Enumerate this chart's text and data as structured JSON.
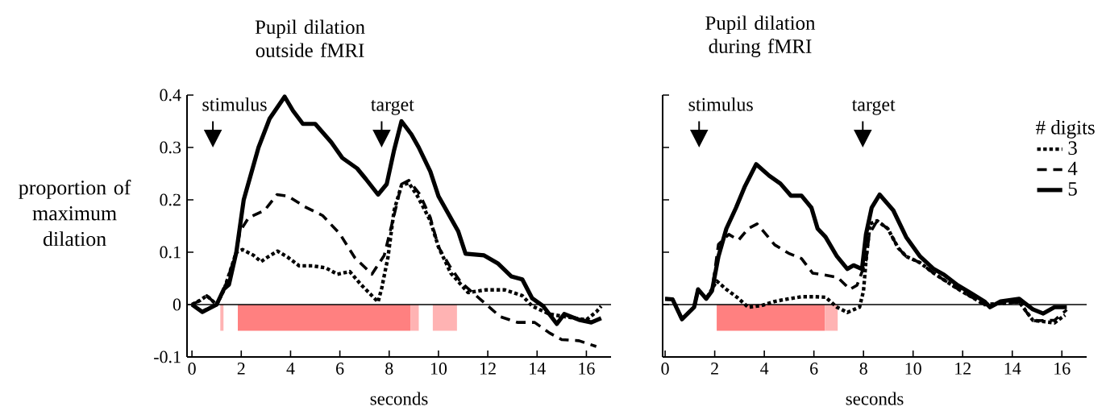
{
  "chart_data": [
    {
      "type": "line",
      "title": "Pupil dilation outside fMRI",
      "xlabel": "seconds",
      "ylabel": "proportion of maximum dilation",
      "xlim": [
        -0.2,
        17
      ],
      "ylim": [
        -0.1,
        0.4
      ],
      "xticks": [
        0,
        2,
        4,
        6,
        8,
        10,
        12,
        14,
        16
      ],
      "yticks": [
        -0.1,
        0,
        0.1,
        0.2,
        0.3,
        0.4
      ],
      "ref_lines": [
        {
          "axis": "y",
          "value": 0,
          "color": "#000000"
        }
      ],
      "bands": [
        {
          "axis": "x",
          "from": 1.15,
          "to": 1.28,
          "color": "#ffb3b3"
        },
        {
          "axis": "x",
          "from": 1.86,
          "to": 8.86,
          "color": "#ff8080"
        },
        {
          "axis": "x",
          "from": 8.86,
          "to": 9.2,
          "color": "#ffb3b3"
        },
        {
          "axis": "x",
          "from": 9.77,
          "to": 10.75,
          "color": "#ffb3b3"
        }
      ],
      "annotations": [
        "stimulus",
        "target"
      ],
      "series": [
        {
          "color": "#000000",
          "line_style": "dotted",
          "x": [
            0,
            0.33,
            0.6,
            1.0,
            1.3,
            1.8,
            2.05,
            2.5,
            2.8,
            3.05,
            3.47,
            3.9,
            4.35,
            4.9,
            5.43,
            5.9,
            6.4,
            6.86,
            7.3,
            7.55,
            7.7,
            7.95,
            8.2,
            8.5,
            8.8,
            9.15,
            9.67,
            10.0,
            10.5,
            11.2,
            11.9,
            12.7,
            13.4,
            13.8,
            14.5,
            15.1,
            16.0,
            16.4,
            16.6
          ],
          "values": [
            0,
            0.008,
            0.017,
            0,
            0.028,
            0.1,
            0.105,
            0.094,
            0.082,
            0.09,
            0.102,
            0.09,
            0.074,
            0.074,
            0.07,
            0.058,
            0.063,
            0.038,
            0.017,
            0.005,
            0.032,
            0.09,
            0.18,
            0.228,
            0.232,
            0.207,
            0.16,
            0.11,
            0.06,
            0.023,
            0.028,
            0.028,
            0.017,
            -0.003,
            -0.018,
            -0.023,
            -0.029,
            -0.014,
            -0.003
          ]
        },
        {
          "color": "#000000",
          "line_style": "dashed",
          "x": [
            0,
            0.33,
            0.6,
            1.0,
            1.3,
            1.8,
            1.95,
            2.3,
            2.95,
            3.45,
            3.9,
            4.57,
            5.3,
            6.0,
            6.6,
            7.3,
            7.8,
            8.3,
            8.5,
            8.8,
            9.25,
            9.67,
            10.0,
            10.45,
            10.9,
            11.75,
            12.5,
            13.2,
            13.9,
            14.5,
            15.0,
            15.7,
            16.4
          ],
          "values": [
            0,
            0.008,
            0.017,
            0,
            0.028,
            0.1,
            0.14,
            0.166,
            0.18,
            0.21,
            0.207,
            0.187,
            0.17,
            0.135,
            0.09,
            0.058,
            0.094,
            0.19,
            0.23,
            0.237,
            0.21,
            0.166,
            0.11,
            0.074,
            0.043,
            0.008,
            -0.023,
            -0.034,
            -0.034,
            -0.054,
            -0.067,
            -0.069,
            -0.08
          ]
        },
        {
          "color": "#000000",
          "line_style": "solid",
          "x": [
            0,
            0.42,
            1.0,
            1.3,
            1.5,
            1.8,
            2.1,
            2.4,
            2.7,
            3.15,
            3.76,
            4.1,
            4.5,
            5.0,
            5.65,
            6.1,
            6.7,
            7.05,
            7.55,
            7.9,
            8.2,
            8.5,
            8.9,
            9.2,
            9.67,
            10.0,
            10.8,
            11.1,
            11.85,
            12.4,
            12.95,
            13.4,
            13.8,
            14.25,
            14.8,
            15.1,
            15.7,
            16.2,
            16.6
          ],
          "values": [
            0,
            -0.014,
            0,
            0.03,
            0.038,
            0.1,
            0.2,
            0.25,
            0.3,
            0.355,
            0.397,
            0.37,
            0.345,
            0.345,
            0.31,
            0.28,
            0.26,
            0.24,
            0.21,
            0.23,
            0.295,
            0.35,
            0.325,
            0.3,
            0.254,
            0.207,
            0.14,
            0.097,
            0.094,
            0.079,
            0.054,
            0.048,
            0.012,
            -0.003,
            -0.037,
            -0.018,
            -0.029,
            -0.034,
            -0.026
          ]
        }
      ]
    },
    {
      "type": "line",
      "title": "Pupil dilation during fMRI",
      "xlabel": "seconds",
      "legend_title": "# digits",
      "legend": "top right",
      "tick_labels": "x",
      "xlim": [
        -0.1,
        17
      ],
      "ylim": [
        -0.1,
        0.4
      ],
      "xticks": [
        0,
        2,
        4,
        6,
        8,
        10,
        12,
        14,
        16
      ],
      "yticks": [
        -0.1,
        0,
        0.1,
        0.2,
        0.3,
        0.4
      ],
      "ref_lines": [
        {
          "axis": "y",
          "value": 0,
          "color": "#000000"
        }
      ],
      "bands": [
        {
          "axis": "x",
          "from": 2.08,
          "to": 6.44,
          "color": "#ff8080"
        },
        {
          "axis": "x",
          "from": 6.44,
          "to": 6.96,
          "color": "#ffb3b3"
        }
      ],
      "annotations": [
        "stimulus",
        "target"
      ],
      "series": [
        {
          "name": "3",
          "color": "#000000",
          "line_style": "dotted",
          "x": [
            0,
            0.3,
            0.68,
            1.17,
            1.33,
            1.66,
            2.08,
            2.47,
            2.9,
            3.35,
            3.87,
            4.42,
            4.98,
            5.5,
            6.05,
            6.47,
            6.93,
            7.35,
            7.84,
            8.0,
            8.1,
            8.26,
            8.55,
            8.98,
            9.4,
            9.72,
            10.28,
            10.83,
            11.8,
            12.88,
            14.28,
            14.83,
            15.7,
            16.13
          ],
          "values": [
            0.011,
            0.01,
            -0.028,
            -0.005,
            0.029,
            0.011,
            0.045,
            0.029,
            0.014,
            -0.005,
            -0.002,
            0.006,
            0.011,
            0.015,
            0.015,
            0.014,
            -0.005,
            -0.015,
            -0.005,
            0.026,
            0.083,
            0.154,
            0.16,
            0.145,
            0.108,
            0.092,
            0.08,
            0.06,
            0.03,
            0,
            0.005,
            -0.03,
            -0.035,
            -0.02
          ]
        },
        {
          "name": "4",
          "color": "#000000",
          "line_style": "dashed",
          "x": [
            0,
            0.3,
            0.68,
            1.17,
            1.33,
            1.66,
            1.89,
            2.15,
            2.57,
            2.96,
            3.35,
            3.71,
            4.0,
            4.42,
            4.98,
            5.5,
            5.95,
            6.37,
            6.96,
            7.45,
            7.74,
            8.1,
            8.23,
            8.55,
            8.98,
            9.4,
            9.72,
            10.28,
            10.83,
            11.8,
            12.88,
            14.28,
            14.83,
            15.7,
            16.2
          ],
          "values": [
            0.011,
            0.01,
            -0.028,
            -0.005,
            0.029,
            0.011,
            0.026,
            0.115,
            0.134,
            0.123,
            0.145,
            0.154,
            0.138,
            0.114,
            0.098,
            0.088,
            0.06,
            0.057,
            0.052,
            0.029,
            0.037,
            0.083,
            0.134,
            0.16,
            0.145,
            0.108,
            0.092,
            0.08,
            0.06,
            0.03,
            0,
            0.005,
            -0.031,
            -0.03,
            -0.01
          ]
        },
        {
          "name": "5",
          "color": "#000000",
          "line_style": "solid",
          "x": [
            0,
            0.3,
            0.68,
            1.17,
            1.33,
            1.66,
            1.89,
            2.15,
            2.47,
            2.86,
            3.22,
            3.67,
            4.2,
            4.65,
            5.07,
            5.5,
            5.9,
            6.15,
            6.47,
            6.93,
            7.35,
            7.6,
            7.94,
            8.1,
            8.33,
            8.65,
            9.2,
            9.72,
            10.28,
            10.83,
            11.25,
            11.8,
            12.33,
            12.88,
            13.1,
            13.53,
            14.28,
            14.83,
            15.25,
            15.7,
            16.2
          ],
          "values": [
            0.011,
            0.01,
            -0.028,
            -0.005,
            0.029,
            0.011,
            0.026,
            0.092,
            0.145,
            0.185,
            0.226,
            0.268,
            0.246,
            0.231,
            0.208,
            0.208,
            0.185,
            0.145,
            0.129,
            0.092,
            0.068,
            0.075,
            0.068,
            0.134,
            0.185,
            0.21,
            0.18,
            0.129,
            0.092,
            0.068,
            0.057,
            0.037,
            0.022,
            0.006,
            -0.005,
            0.006,
            0.011,
            -0.009,
            -0.017,
            -0.005,
            -0.005
          ]
        }
      ]
    }
  ]
}
